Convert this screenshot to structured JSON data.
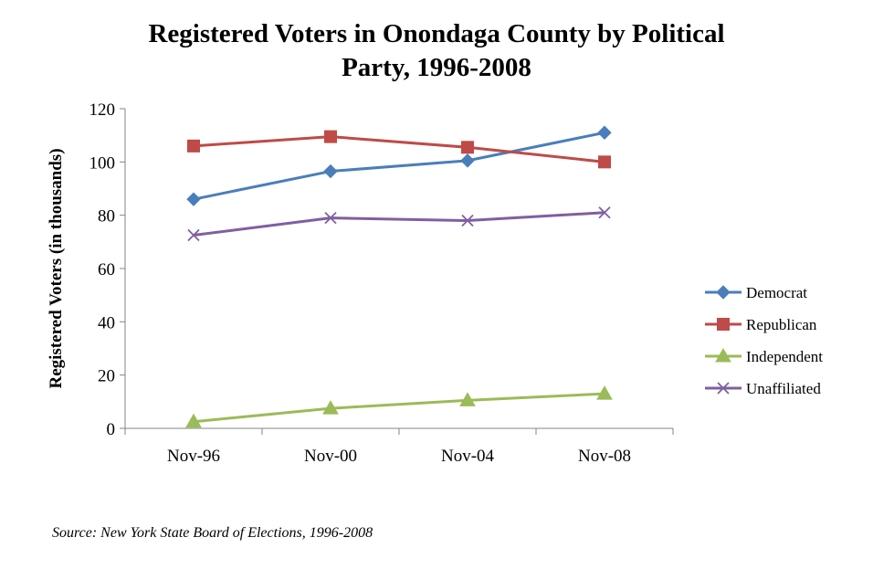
{
  "chart_data": {
    "type": "line",
    "title_line1": "Registered Voters in Onondaga County by Political",
    "title_line2": "Party, 1996-2008",
    "ylabel": "Registered Voters (in thousands)",
    "xlabel": "",
    "categories": [
      "Nov-96",
      "Nov-00",
      "Nov-04",
      "Nov-08"
    ],
    "ylim": [
      0,
      120
    ],
    "yticks": [
      0,
      20,
      40,
      60,
      80,
      100,
      120
    ],
    "grid": false,
    "legend_position": "right",
    "series": [
      {
        "name": "Democrat",
        "values": [
          86,
          96.5,
          100.5,
          111
        ],
        "color": "#4a7ebb",
        "marker": "diamond"
      },
      {
        "name": "Republican",
        "values": [
          106,
          109.5,
          105.5,
          100
        ],
        "color": "#be4b48",
        "marker": "square"
      },
      {
        "name": "Independent",
        "values": [
          2.5,
          7.5,
          10.5,
          13
        ],
        "color": "#9bbb59",
        "marker": "triangle"
      },
      {
        "name": "Unaffiliated",
        "values": [
          72.5,
          79,
          78,
          81
        ],
        "color": "#7f5fa0",
        "marker": "x"
      }
    ],
    "source": "Source: New York State Board of Elections, 1996-2008"
  }
}
